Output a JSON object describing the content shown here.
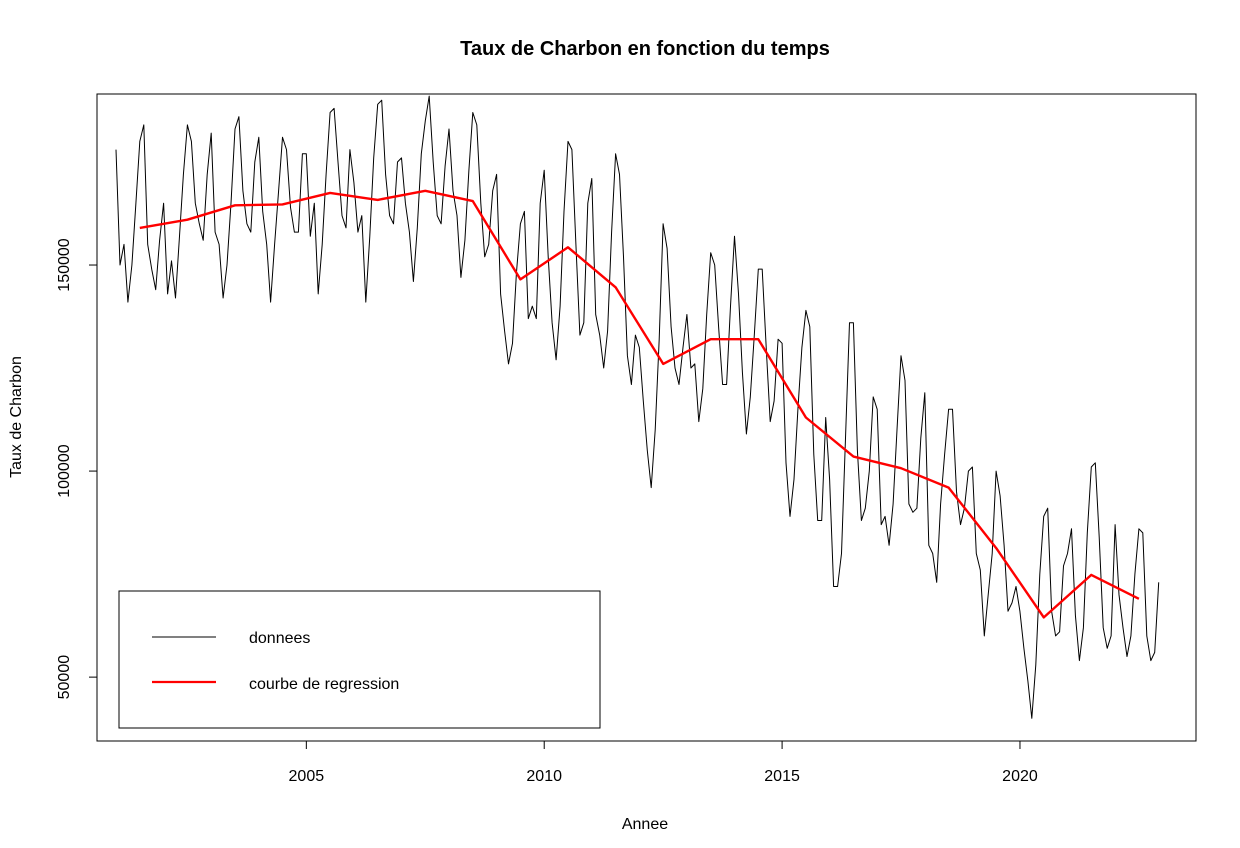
{
  "chart_data": {
    "type": "line",
    "title": "Taux de Charbon en fonction du temps",
    "xlabel": "Annee",
    "ylabel": "Taux de Charbon",
    "xlim": [
      2000.6,
      2023.7
    ],
    "ylim": [
      34500,
      191500
    ],
    "x_ticks": [
      2005,
      2010,
      2015,
      2020
    ],
    "x_tick_labels": [
      "2005",
      "2010",
      "2015",
      "2020"
    ],
    "y_ticks": [
      50000,
      100000,
      150000
    ],
    "y_tick_labels": [
      "50000",
      "100000",
      "150000"
    ],
    "grid": false,
    "legend": {
      "position": "bottom-left",
      "entries": [
        {
          "label": "donnees",
          "color": "#000000"
        },
        {
          "label": "courbe de regression",
          "color": "#ff0000"
        }
      ]
    },
    "series": [
      {
        "name": "donnees",
        "color": "#000000",
        "x_start": 2001.0,
        "step": 0.08333,
        "values": [
          178000,
          150000,
          155000,
          141000,
          150000,
          165000,
          180000,
          184000,
          155000,
          149000,
          144000,
          156000,
          165000,
          143000,
          151000,
          142000,
          157000,
          172000,
          184000,
          180000,
          165000,
          160000,
          156000,
          172000,
          182000,
          158000,
          155000,
          142000,
          150000,
          165000,
          183000,
          186000,
          168000,
          160000,
          158000,
          175000,
          181000,
          163000,
          155000,
          141000,
          155000,
          168000,
          181000,
          178000,
          164000,
          158000,
          158000,
          177000,
          177000,
          157000,
          165000,
          143000,
          155000,
          172000,
          187000,
          188000,
          175000,
          162000,
          159000,
          178000,
          170000,
          158000,
          162000,
          141000,
          157000,
          176000,
          189000,
          190000,
          172000,
          162000,
          160000,
          175000,
          176000,
          165000,
          158000,
          146000,
          159000,
          177000,
          185000,
          191000,
          175000,
          162000,
          160000,
          174000,
          183000,
          168000,
          162000,
          147000,
          156000,
          173000,
          187000,
          184000,
          165000,
          152000,
          155000,
          168000,
          172000,
          143000,
          134000,
          126000,
          131000,
          148000,
          160000,
          163000,
          137000,
          140000,
          137000,
          165000,
          173000,
          152000,
          136000,
          127000,
          140000,
          163000,
          180000,
          178000,
          155000,
          133000,
          136000,
          165000,
          171000,
          138000,
          133000,
          125000,
          134000,
          158000,
          177000,
          172000,
          152000,
          128000,
          121000,
          133000,
          130000,
          117000,
          105000,
          96000,
          110000,
          132000,
          160000,
          154000,
          135000,
          125000,
          121000,
          130000,
          138000,
          125000,
          126000,
          112000,
          120000,
          138000,
          153000,
          150000,
          135000,
          121000,
          121000,
          140000,
          157000,
          143000,
          124000,
          109000,
          118000,
          133000,
          149000,
          149000,
          130000,
          112000,
          117000,
          132000,
          131000,
          102000,
          89000,
          98000,
          115000,
          130000,
          139000,
          135000,
          104000,
          88000,
          88000,
          113000,
          98000,
          72000,
          72000,
          80000,
          108000,
          136000,
          136000,
          105000,
          88000,
          91000,
          100000,
          118000,
          115000,
          87000,
          89000,
          82000,
          92000,
          110000,
          128000,
          122000,
          92000,
          90000,
          91000,
          108000,
          119000,
          82000,
          80000,
          73000,
          92000,
          104000,
          115000,
          115000,
          95000,
          87000,
          91000,
          100000,
          101000,
          80000,
          76000,
          60000,
          70000,
          80000,
          100000,
          94000,
          82000,
          66000,
          68000,
          72000,
          66000,
          57000,
          49000,
          40000,
          53000,
          75000,
          89000,
          91000,
          66000,
          60000,
          61000,
          77000,
          80000,
          86000,
          65000,
          54000,
          62000,
          85000,
          101000,
          102000,
          84000,
          62000,
          57000,
          60000,
          87000,
          70000,
          62000,
          55000,
          60000,
          75000,
          86000,
          85000,
          60000,
          54000,
          56000,
          73000
        ]
      },
      {
        "name": "courbe de regression",
        "color": "#ff0000",
        "x": [
          2001.5,
          2002.5,
          2003.5,
          2004.5,
          2005.5,
          2006.5,
          2007.5,
          2008.5,
          2009.5,
          2010.5,
          2011.5,
          2012.5,
          2013.5,
          2014.5,
          2015.5,
          2016.5,
          2017.5,
          2018.5,
          2019.5,
          2020.5,
          2021.5,
          2022.5
        ],
        "values": [
          159000,
          161000,
          164500,
          164700,
          167500,
          165800,
          168000,
          165500,
          146500,
          154300,
          144600,
          126000,
          132000,
          132000,
          113000,
          103500,
          100700,
          96000,
          81300,
          64500,
          74800,
          69000
        ]
      }
    ]
  }
}
